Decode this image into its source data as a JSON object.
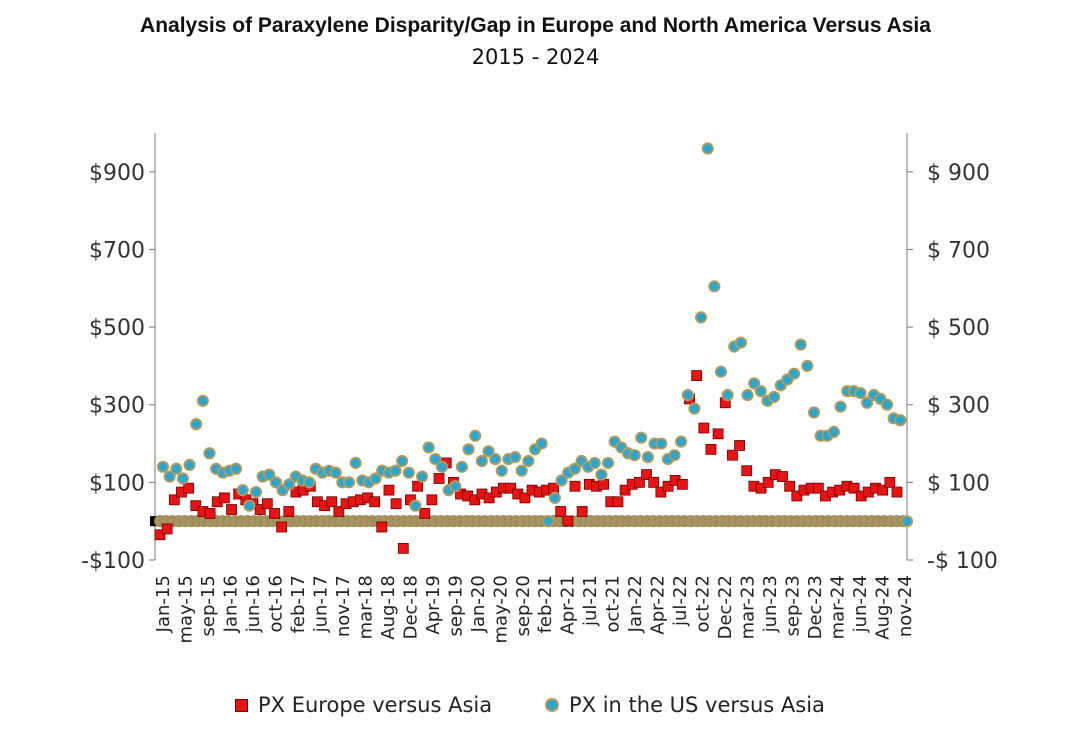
{
  "chart_data": {
    "type": "scatter",
    "title": "Analysis of Paraxylene Disparity/Gap in Europe and North America Versus Asia",
    "subtitle": "2015 - 2024",
    "ylim": [
      -100,
      1000
    ],
    "y_ticks_left": [
      "-$100",
      "$100",
      "$300",
      "$500",
      "$700",
      "$900"
    ],
    "y_ticks_right": [
      "-$ 100",
      "$ 100",
      "$ 300",
      "$ 500",
      "$ 700",
      "$ 900"
    ],
    "y_tick_values": [
      -100,
      100,
      300,
      500,
      700,
      900
    ],
    "x_tick_labels": [
      "Jan-15",
      "may-15",
      "sep-15",
      "Jan-16",
      "jun-16",
      "oct-16",
      "feb-17",
      "jun-17",
      "nov-17",
      "mar-18",
      "Aug-18",
      "Dec-18",
      "Apr-19",
      "sep-19",
      "Jan-20",
      "may-20",
      "sep-20",
      "feb-21",
      "Apr-21",
      "jul-21",
      "oct-21",
      "Jan-22",
      "Apr-22",
      "jul-22",
      "oct-22",
      "Dec-22",
      "mar-23",
      "jun-23",
      "sep-23",
      "Dec-23",
      "mar-24",
      "jun-24",
      "Aug-24",
      "nov-24"
    ],
    "legend_position": "bottom",
    "series": [
      {
        "name": "PX Europe versus Asia",
        "marker": "square",
        "color": "#e81414",
        "values": [
          -35,
          -20,
          55,
          75,
          85,
          40,
          25,
          20,
          50,
          60,
          30,
          70,
          55,
          45,
          30,
          45,
          20,
          -15,
          25,
          75,
          80,
          90,
          50,
          40,
          50,
          25,
          45,
          50,
          55,
          60,
          50,
          -15,
          80,
          45,
          -70,
          55,
          90,
          20,
          55,
          110,
          150,
          100,
          70,
          65,
          55,
          70,
          60,
          75,
          85,
          85,
          70,
          60,
          80,
          75,
          80,
          85,
          25,
          0,
          90,
          25,
          95,
          90,
          95,
          50,
          50,
          80,
          95,
          100,
          120,
          100,
          75,
          90,
          105,
          95,
          315,
          375,
          240,
          185,
          225,
          305,
          170,
          195,
          130,
          90,
          85,
          100,
          120,
          115,
          90,
          65,
          80,
          85,
          85,
          65,
          75,
          80,
          90,
          85,
          65,
          75,
          85,
          80,
          100,
          75
        ]
      },
      {
        "name": "PX in the US versus Asia",
        "marker": "circle",
        "color": "#2aa6cf",
        "values": [
          140,
          115,
          135,
          110,
          145,
          250,
          310,
          175,
          135,
          125,
          130,
          135,
          80,
          40,
          75,
          115,
          120,
          100,
          80,
          95,
          115,
          105,
          100,
          135,
          125,
          130,
          125,
          100,
          100,
          150,
          105,
          100,
          110,
          130,
          125,
          130,
          155,
          125,
          40,
          115,
          190,
          160,
          140,
          80,
          90,
          140,
          185,
          220,
          155,
          180,
          160,
          130,
          160,
          165,
          130,
          155,
          185,
          200,
          0,
          60,
          105,
          125,
          135,
          155,
          140,
          150,
          120,
          150,
          205,
          190,
          175,
          170,
          215,
          165,
          200,
          200,
          160,
          170,
          205,
          325,
          290,
          525,
          960,
          605,
          385,
          325,
          450,
          460,
          325,
          355,
          335,
          310,
          320,
          350,
          365,
          380,
          455,
          400,
          280,
          220,
          220,
          230,
          295,
          335,
          335,
          330,
          305,
          325,
          315,
          300,
          265,
          260,
          0
        ]
      },
      {
        "name": "",
        "marker": "circle",
        "color": "#a89460",
        "values": [
          0,
          0,
          0,
          0,
          0,
          0,
          0,
          0,
          0,
          0,
          0,
          0,
          0,
          0,
          0,
          0,
          0,
          0,
          0,
          0,
          0,
          0,
          0,
          0,
          0,
          0,
          0,
          0,
          0,
          0,
          0,
          0,
          0,
          0,
          0,
          0,
          0,
          0,
          0,
          0,
          0,
          0,
          0,
          0,
          0,
          0,
          0,
          0,
          0,
          0,
          0,
          0,
          0,
          0,
          0,
          0,
          0,
          0,
          0,
          0,
          0,
          0,
          0,
          0,
          0,
          0,
          0,
          0,
          0,
          0,
          0,
          0,
          0,
          0,
          0,
          0,
          0,
          0,
          0,
          0,
          0,
          0,
          0,
          0,
          0,
          0,
          0,
          0,
          0,
          0,
          0,
          0,
          0,
          0,
          0,
          0,
          0,
          0,
          0,
          0,
          0,
          0,
          0,
          0,
          0,
          0,
          0,
          0,
          0,
          0,
          0,
          0,
          0,
          0,
          0,
          0,
          0,
          0,
          0,
          0
        ]
      }
    ]
  }
}
